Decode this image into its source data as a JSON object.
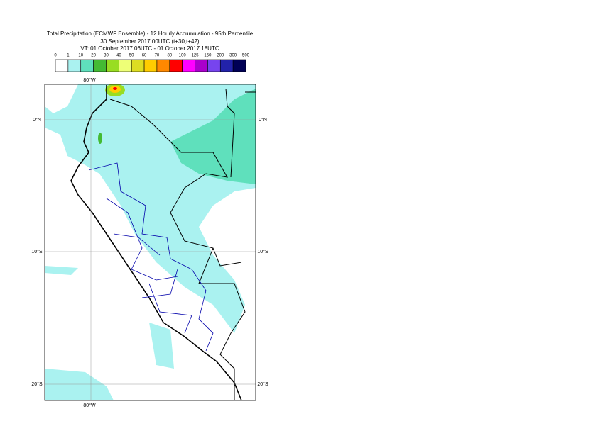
{
  "header": {
    "lines": [
      "Total Precipitation (ECMWF Ensemble) - 12 Hourly Accumulation - 95th Percentile",
      "30 September 2017 00UTC (t+30,t+42)",
      "VT: 01 October 2017 06UTC - 01 October 2017 18UTC"
    ]
  },
  "legend": {
    "ticks": [
      0,
      1,
      10,
      20,
      30,
      40,
      50,
      60,
      70,
      80,
      100,
      125,
      150,
      200,
      300,
      500
    ],
    "colors": [
      "#ffffff",
      "#aaf2f0",
      "#5fe0bc",
      "#44bb33",
      "#99dd22",
      "#eeff77",
      "#dddd22",
      "#ffcc00",
      "#ff8800",
      "#ff0000",
      "#ff00ff",
      "#aa00cc",
      "#7744ee",
      "#2222aa",
      "#000055"
    ]
  },
  "map": {
    "lon_labels": [
      "80°W"
    ],
    "lat_labels": [
      "0°N",
      "10°S",
      "20°S"
    ]
  }
}
